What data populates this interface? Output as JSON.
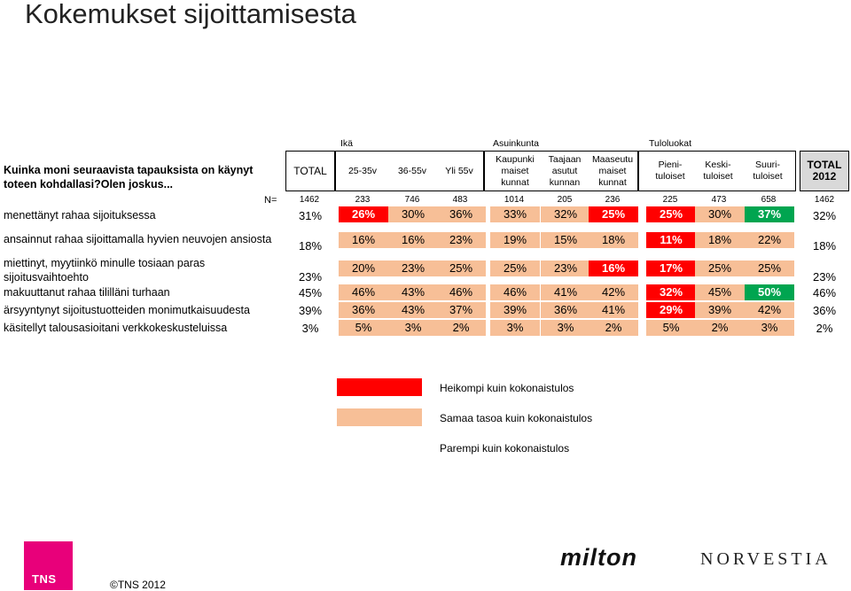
{
  "title": "Kokemukset sijoittamisesta",
  "question": "Kuinka moni seuraavista tapauksista on käynyt toteen kohdallasi?Olen joskus...",
  "groups": {
    "age": "Ikä",
    "residence": "Asuinkunta",
    "income": "Tuloluokat"
  },
  "columns": [
    "TOTAL",
    "25-35v",
    "36-55v",
    "Yli 55v",
    "Kaupunki maiset kunnat",
    "Taajaan asutut kunnan",
    "Maaseutu maiset kunnat",
    "Pieni- tuloiset",
    "Keski- tuloiset",
    "Suuri- tuloiset",
    "TOTAL 2012"
  ],
  "n_label": "N=",
  "n_values": [
    "1462",
    "233",
    "746",
    "483",
    "1014",
    "205",
    "236",
    "225",
    "473",
    "658",
    "1462"
  ],
  "rows": [
    {
      "label": "menettänyt rahaa sijoituksessa",
      "total": "31%",
      "values": [
        "26%",
        "30%",
        "36%",
        "33%",
        "32%",
        "25%",
        "25%",
        "30%",
        "37%"
      ],
      "colors": [
        "red",
        "peach",
        "peach",
        "peach",
        "peach",
        "red",
        "red",
        "peach",
        "green"
      ],
      "total2012": "32%"
    },
    {
      "label": "ansainnut rahaa sijoittamalla hyvien neuvojen ansiosta",
      "total": "18%",
      "values": [
        "16%",
        "16%",
        "23%",
        "19%",
        "15%",
        "18%",
        "11%",
        "18%",
        "22%"
      ],
      "colors": [
        "peach",
        "peach",
        "peach",
        "peach",
        "peach",
        "peach",
        "red",
        "peach",
        "peach"
      ],
      "total2012": "18%"
    },
    {
      "label": "miettinyt, myytiinkö minulle tosiaan paras sijoitusvaihtoehto",
      "total": "23%",
      "values": [
        "20%",
        "23%",
        "25%",
        "25%",
        "23%",
        "16%",
        "17%",
        "25%",
        "25%"
      ],
      "colors": [
        "peach",
        "peach",
        "peach",
        "peach",
        "peach",
        "red",
        "red",
        "peach",
        "peach"
      ],
      "total2012": "23%"
    },
    {
      "label": "makuuttanut rahaa tililläni turhaan",
      "total": "45%",
      "values": [
        "46%",
        "43%",
        "46%",
        "46%",
        "41%",
        "42%",
        "32%",
        "45%",
        "50%"
      ],
      "colors": [
        "peach",
        "peach",
        "peach",
        "peach",
        "peach",
        "peach",
        "red",
        "peach",
        "green"
      ],
      "total2012": "46%"
    },
    {
      "label": "ärsyyntynyt sijoitustuotteiden monimutkaisuudesta",
      "total": "39%",
      "values": [
        "36%",
        "43%",
        "37%",
        "39%",
        "36%",
        "41%",
        "29%",
        "39%",
        "42%"
      ],
      "colors": [
        "peach",
        "peach",
        "peach",
        "peach",
        "peach",
        "peach",
        "red",
        "peach",
        "peach"
      ],
      "total2012": "36%"
    },
    {
      "label": "käsitellyt talousasioitani verkkokeskusteluissa",
      "total": "3%",
      "values": [
        "5%",
        "3%",
        "2%",
        "3%",
        "3%",
        "2%",
        "5%",
        "2%",
        "3%"
      ],
      "colors": [
        "peach",
        "peach",
        "peach",
        "peach",
        "peach",
        "peach",
        "peach",
        "peach",
        "peach"
      ],
      "total2012": "2%"
    }
  ],
  "colors": {
    "red": "#ff0000",
    "peach": "#f7bf97",
    "green": "#00a550"
  },
  "legend": [
    {
      "label": "Heikompi kuin kokonaistulos",
      "color": "#ff0000"
    },
    {
      "label": "Samaa tasoa kuin kokonaistulos",
      "color": "#f7bf97"
    },
    {
      "label": "Parempi kuin kokonaistulos",
      "color": "#ffffff"
    }
  ],
  "footer": {
    "tns": "TNS",
    "copyright": "©TNS 2012",
    "brand1": "milton",
    "brand2": "NORVESTIA"
  }
}
